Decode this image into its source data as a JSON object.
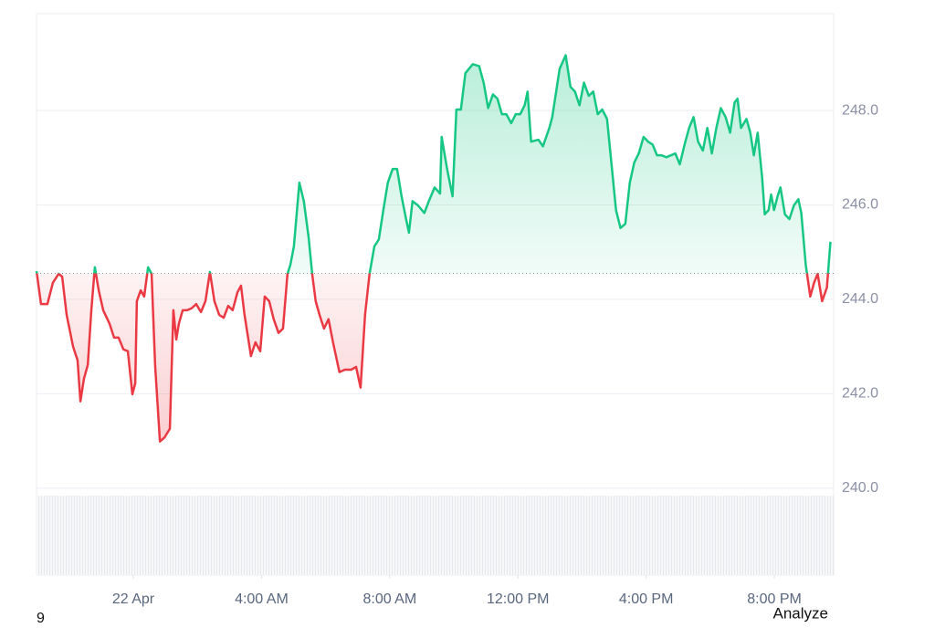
{
  "chart_data": {
    "type": "baseline-area",
    "baseline": 244.55,
    "up_color": "#16c784",
    "down_color": "#ea3943",
    "grid": true,
    "ylim": [
      239.9,
      250.05
    ],
    "yticks": [
      {
        "value": 240,
        "label": "240.0"
      },
      {
        "value": 242,
        "label": "242.0"
      },
      {
        "value": 244,
        "label": "244.0"
      },
      {
        "value": 246,
        "label": "246.0"
      },
      {
        "value": 248,
        "label": "248.0"
      }
    ],
    "xlim": [
      -3.02,
      21.85
    ],
    "xticks": [
      {
        "value": 0,
        "label": "22 Apr"
      },
      {
        "value": 4,
        "label": "4:00 AM"
      },
      {
        "value": 8,
        "label": "8:00 AM"
      },
      {
        "value": 12,
        "label": "12:00 PM"
      },
      {
        "value": 16,
        "label": "4:00 PM"
      },
      {
        "value": 20,
        "label": "8:00 PM"
      }
    ],
    "x": [
      -3.02,
      -2.88,
      -2.68,
      -2.51,
      -2.33,
      -2.22,
      -2.08,
      -1.88,
      -1.74,
      -1.65,
      -1.54,
      -1.42,
      -1.31,
      -1.2,
      -1.08,
      -0.94,
      -0.74,
      -0.6,
      -0.46,
      -0.31,
      -0.17,
      -0.03,
      0.06,
      0.11,
      0.23,
      0.34,
      0.46,
      0.57,
      0.68,
      0.83,
      0.97,
      1.14,
      1.25,
      1.34,
      1.42,
      1.54,
      1.68,
      1.82,
      1.96,
      2.11,
      2.25,
      2.39,
      2.53,
      2.68,
      2.82,
      2.96,
      3.1,
      3.25,
      3.36,
      3.47,
      3.67,
      3.81,
      3.96,
      4.1,
      4.24,
      4.38,
      4.53,
      4.67,
      4.81,
      4.9,
      5.01,
      5.18,
      5.32,
      5.47,
      5.58,
      5.69,
      5.81,
      5.95,
      6.09,
      6.23,
      6.43,
      6.6,
      6.8,
      6.95,
      7.09,
      7.23,
      7.37,
      7.52,
      7.66,
      7.8,
      7.94,
      8.09,
      8.23,
      8.37,
      8.51,
      8.6,
      8.71,
      8.88,
      9.08,
      9.22,
      9.4,
      9.57,
      9.62,
      9.79,
      9.96,
      10.08,
      10.22,
      10.36,
      10.59,
      10.79,
      10.93,
      11.07,
      11.22,
      11.36,
      11.5,
      11.64,
      11.79,
      11.93,
      12.07,
      12.21,
      12.3,
      12.41,
      12.64,
      12.78,
      12.98,
      13.07,
      13.15,
      13.3,
      13.49,
      13.64,
      13.78,
      13.92,
      14.06,
      14.21,
      14.35,
      14.49,
      14.63,
      14.78,
      14.92,
      15.06,
      15.2,
      15.35,
      15.49,
      15.63,
      15.77,
      15.92,
      16.06,
      16.2,
      16.34,
      16.48,
      16.63,
      16.77,
      16.91,
      17.05,
      17.2,
      17.34,
      17.48,
      17.62,
      17.77,
      17.91,
      18.05,
      18.19,
      18.33,
      18.48,
      18.62,
      18.76,
      18.85,
      18.96,
      19.13,
      19.25,
      19.36,
      19.48,
      19.62,
      19.7,
      19.82,
      19.9,
      19.99,
      20.1,
      20.19,
      20.33,
      20.47,
      20.61,
      20.75,
      20.84,
      20.98,
      21.12,
      21.24,
      21.35,
      21.49,
      21.64,
      21.75
    ],
    "values": [
      244.6,
      243.9,
      243.9,
      244.35,
      244.54,
      244.48,
      243.67,
      243.0,
      242.71,
      241.84,
      242.32,
      242.61,
      243.77,
      244.68,
      244.19,
      243.77,
      243.48,
      243.19,
      243.19,
      242.94,
      242.9,
      241.99,
      242.22,
      243.96,
      244.19,
      244.06,
      244.68,
      244.54,
      242.61,
      240.99,
      241.07,
      241.26,
      243.77,
      243.15,
      243.48,
      243.77,
      243.77,
      243.81,
      243.9,
      243.73,
      243.96,
      244.58,
      243.96,
      243.67,
      243.61,
      243.86,
      243.77,
      244.15,
      244.29,
      243.67,
      242.8,
      243.09,
      242.9,
      244.06,
      243.96,
      243.58,
      243.29,
      243.38,
      244.54,
      244.73,
      245.12,
      246.47,
      246.08,
      245.31,
      244.54,
      243.96,
      243.67,
      243.38,
      243.58,
      243.09,
      242.46,
      242.51,
      242.51,
      242.57,
      242.13,
      243.67,
      244.54,
      245.12,
      245.27,
      245.89,
      246.47,
      246.76,
      246.76,
      246.18,
      245.7,
      245.41,
      246.08,
      245.99,
      245.83,
      246.08,
      246.37,
      246.24,
      247.44,
      246.76,
      246.18,
      248.02,
      248.02,
      248.79,
      248.98,
      248.94,
      248.59,
      248.05,
      248.34,
      248.25,
      247.92,
      247.92,
      247.73,
      247.92,
      247.92,
      248.11,
      248.4,
      247.34,
      247.38,
      247.24,
      247.63,
      247.86,
      248.21,
      248.88,
      249.17,
      248.5,
      248.4,
      248.11,
      248.59,
      248.31,
      248.4,
      247.92,
      248.02,
      247.82,
      246.86,
      245.89,
      245.51,
      245.6,
      246.47,
      246.9,
      247.09,
      247.44,
      247.34,
      247.28,
      247.05,
      247.05,
      247.01,
      247.05,
      247.09,
      246.86,
      247.28,
      247.63,
      247.86,
      247.34,
      247.15,
      247.63,
      247.09,
      247.63,
      248.05,
      247.86,
      247.53,
      248.17,
      248.25,
      247.63,
      247.82,
      247.53,
      247.05,
      247.53,
      246.57,
      245.8,
      245.89,
      246.22,
      245.89,
      246.18,
      246.37,
      245.8,
      245.7,
      245.99,
      246.12,
      245.83,
      244.73,
      244.06,
      244.35,
      244.54,
      243.96,
      244.25,
      245.22
    ],
    "cut_text": "9",
    "analyze_label": "Analyze"
  }
}
